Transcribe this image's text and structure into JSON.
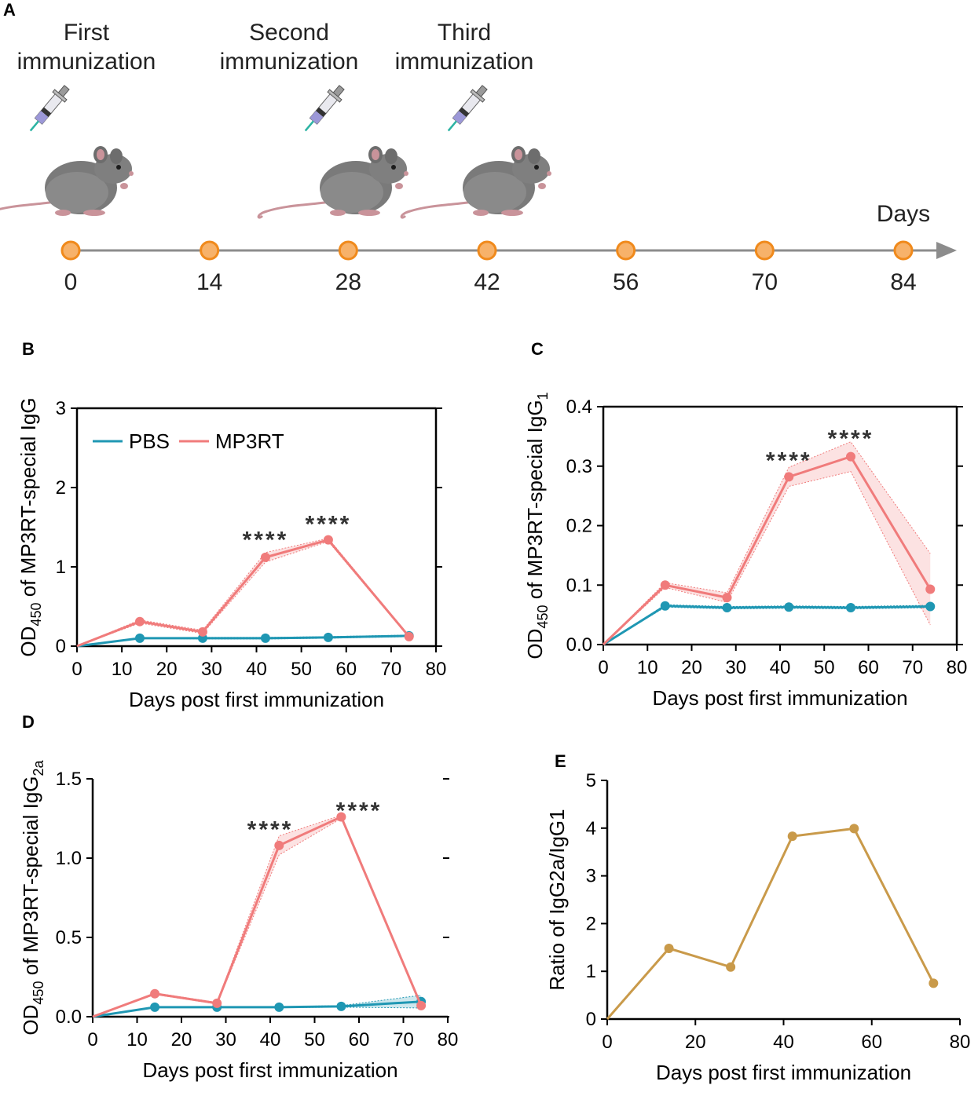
{
  "panel_a": {
    "label": "A",
    "events": [
      {
        "title_line1": "First",
        "title_line2": "immunization",
        "day": 0
      },
      {
        "title_line1": "Second",
        "title_line2": "immunization",
        "day": 28
      },
      {
        "title_line1": "Third",
        "title_line2": "immunization",
        "day": 42
      }
    ],
    "axis_label": "Days",
    "ticks": [
      "0",
      "14",
      "28",
      "42",
      "56",
      "70",
      "84"
    ],
    "colors": {
      "dot_fill": "#f7b26a",
      "dot_stroke": "#f08a1c",
      "axis": "#8c8c8c"
    }
  },
  "colors": {
    "pbs": "#1f97b3",
    "mp3rt": "#f07b7b",
    "ratio": "#c99a4a"
  },
  "chart_data": [
    {
      "panel": "B",
      "type": "line",
      "ylabel_main": "OD",
      "ylabel_sub": "450",
      "ylabel_rest": " of MP3RT-special IgG",
      "ylabel_sub2": "",
      "xlabel": "Days post first immunization",
      "x_ticks": [
        "0",
        "10",
        "20",
        "30",
        "40",
        "50",
        "60",
        "70",
        "80"
      ],
      "y_ticks": [
        "0",
        "1",
        "2",
        "3"
      ],
      "xlim": [
        0,
        80
      ],
      "ylim": [
        0,
        3
      ],
      "legend": [
        "PBS",
        "MP3RT"
      ],
      "series": [
        {
          "name": "PBS",
          "x": [
            0,
            14,
            28,
            42,
            56,
            74
          ],
          "values": [
            0,
            0.1,
            0.1,
            0.1,
            0.11,
            0.13
          ],
          "band": [
            0,
            0,
            0.01,
            0.01,
            0.01,
            0.01
          ]
        },
        {
          "name": "MP3RT",
          "x": [
            0,
            14,
            28,
            42,
            56,
            74
          ],
          "values": [
            0,
            0.31,
            0.18,
            1.12,
            1.34,
            0.12
          ],
          "band": [
            0,
            0.02,
            0.02,
            0.06,
            0.02,
            0.01
          ]
        }
      ],
      "annotations": [
        {
          "text": "****",
          "x": 42,
          "y": 1.38
        },
        {
          "text": "****",
          "x": 56,
          "y": 1.58
        }
      ]
    },
    {
      "panel": "C",
      "type": "line",
      "ylabel_main": "OD",
      "ylabel_sub": "450",
      "ylabel_rest": " of MP3RT-special IgG",
      "ylabel_sub2": "1",
      "xlabel": "Days post first immunization",
      "x_ticks": [
        "0",
        "10",
        "20",
        "30",
        "40",
        "50",
        "60",
        "70",
        "80"
      ],
      "y_ticks": [
        "0.0",
        "0.1",
        "0.2",
        "0.3",
        "0.4"
      ],
      "xlim": [
        0,
        80
      ],
      "ylim": [
        0,
        0.4
      ],
      "series": [
        {
          "name": "PBS",
          "x": [
            0,
            14,
            28,
            42,
            56,
            74
          ],
          "values": [
            0,
            0.065,
            0.062,
            0.063,
            0.062,
            0.064
          ],
          "band": [
            0,
            0.002,
            0.002,
            0.002,
            0.002,
            0.002
          ]
        },
        {
          "name": "MP3RT",
          "x": [
            0,
            14,
            28,
            42,
            56,
            74
          ],
          "values": [
            0,
            0.1,
            0.079,
            0.282,
            0.316,
            0.093
          ],
          "band": [
            0,
            0.004,
            0.008,
            0.016,
            0.025,
            0.06
          ]
        }
      ],
      "annotations": [
        {
          "text": "****",
          "x": 42,
          "y": 0.315
        },
        {
          "text": "****",
          "x": 56,
          "y": 0.352
        }
      ]
    },
    {
      "panel": "D",
      "type": "line",
      "ylabel_main": "OD",
      "ylabel_sub": "450",
      "ylabel_rest": " of MP3RT-special IgG",
      "ylabel_sub2": "2a",
      "xlabel": "Days post first immunization",
      "x_ticks": [
        "0",
        "10",
        "20",
        "30",
        "40",
        "50",
        "60",
        "70",
        "80"
      ],
      "y_ticks": [
        "0.0",
        "0.5",
        "1.0",
        "1.5"
      ],
      "xlim": [
        0,
        80
      ],
      "ylim": [
        0,
        1.5
      ],
      "series": [
        {
          "name": "PBS",
          "x": [
            0,
            14,
            28,
            42,
            56,
            74
          ],
          "values": [
            0,
            0.06,
            0.06,
            0.06,
            0.065,
            0.095
          ],
          "band": [
            0,
            0.003,
            0.003,
            0.003,
            0.005,
            0.04
          ]
        },
        {
          "name": "MP3RT",
          "x": [
            0,
            14,
            28,
            42,
            56,
            74
          ],
          "values": [
            0,
            0.145,
            0.085,
            1.08,
            1.26,
            0.07
          ],
          "band": [
            0,
            0.005,
            0.005,
            0.06,
            0.01,
            0.005
          ]
        }
      ],
      "annotations": [
        {
          "text": "****",
          "x": 40,
          "y": 1.2
        },
        {
          "text": "****",
          "x": 60,
          "y": 1.32
        }
      ]
    },
    {
      "panel": "E",
      "type": "line",
      "ylabel": "Ratio of IgG2a/IgG1",
      "xlabel": "Days post first immunization",
      "x_ticks": [
        "0",
        "20",
        "40",
        "60",
        "80"
      ],
      "y_ticks": [
        "0",
        "1",
        "2",
        "3",
        "4",
        "5"
      ],
      "xlim": [
        0,
        80
      ],
      "ylim": [
        0,
        5
      ],
      "series": [
        {
          "name": "Ratio",
          "x": [
            0,
            14,
            28,
            42,
            56,
            74
          ],
          "values": [
            0,
            1.48,
            1.09,
            3.83,
            3.99,
            0.75
          ]
        }
      ]
    }
  ]
}
